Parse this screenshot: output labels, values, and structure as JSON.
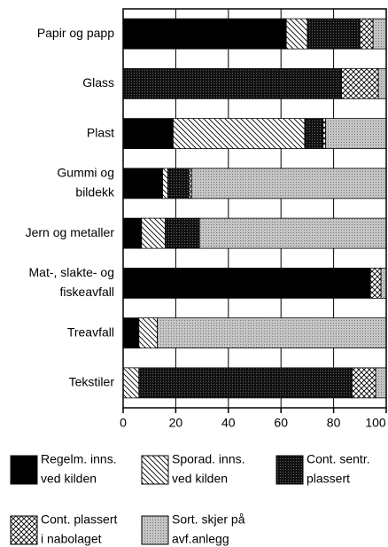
{
  "chart_data": {
    "type": "stacked_barh",
    "categories": [
      "Papir og papp",
      "Glass",
      "Plast",
      "Gummi og\nbildekk",
      "Jern og metaller",
      "Mat-, slakte- og\nfiskeavfall",
      "Treavfall",
      "Tekstiler"
    ],
    "series": [
      {
        "name": "Regelm. inns.\nved kilden",
        "color": "#000000",
        "values": [
          62,
          0,
          19,
          15,
          7,
          94,
          6,
          0
        ]
      },
      {
        "name": "Sporad. inns.\nved kilden",
        "color": "hatch",
        "values": [
          8,
          0,
          50,
          2,
          9,
          0,
          7,
          6
        ]
      },
      {
        "name": "Cont. sentr.\nplassert",
        "color": "#2a2a2a",
        "values": [
          20,
          83,
          7,
          8,
          13,
          0,
          0,
          81
        ]
      },
      {
        "name": "Cont. plassert\ni nabolaget",
        "color": "crosshatch",
        "values": [
          5,
          14,
          1,
          1,
          0,
          4,
          0,
          9
        ]
      },
      {
        "name": "Sort. skjer på\navf.anlegg",
        "color": "#b8b8b8",
        "values": [
          5,
          3,
          23,
          74,
          71,
          2,
          87,
          4
        ]
      }
    ],
    "xlim": [
      0,
      100
    ],
    "xticks": [
      0,
      20,
      40,
      60,
      80,
      100
    ],
    "grid": true
  }
}
